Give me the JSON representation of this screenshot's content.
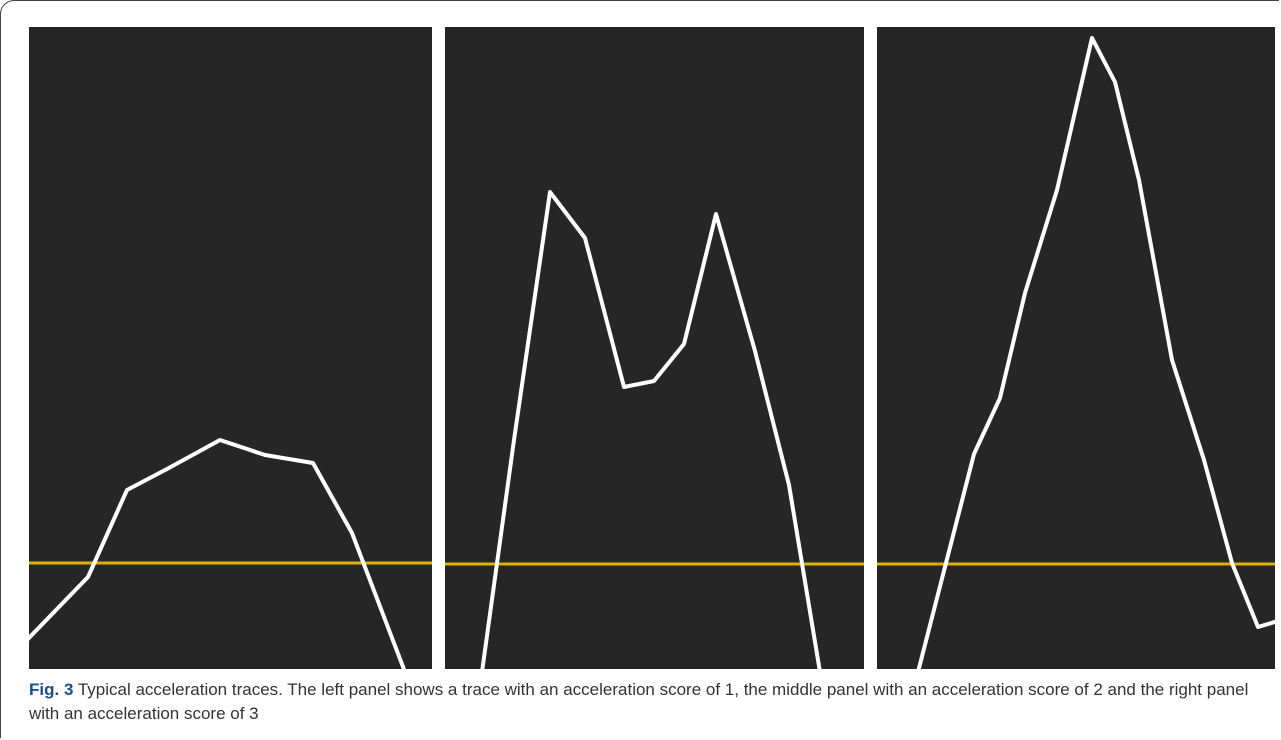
{
  "figure": {
    "label": "Fig. 3",
    "caption": "Typical acceleration traces. The left panel shows a trace with an acceleration score of 1, the middle panel with an acceleration score of 2 and the right panel with an acceleration score of 3"
  }
}
